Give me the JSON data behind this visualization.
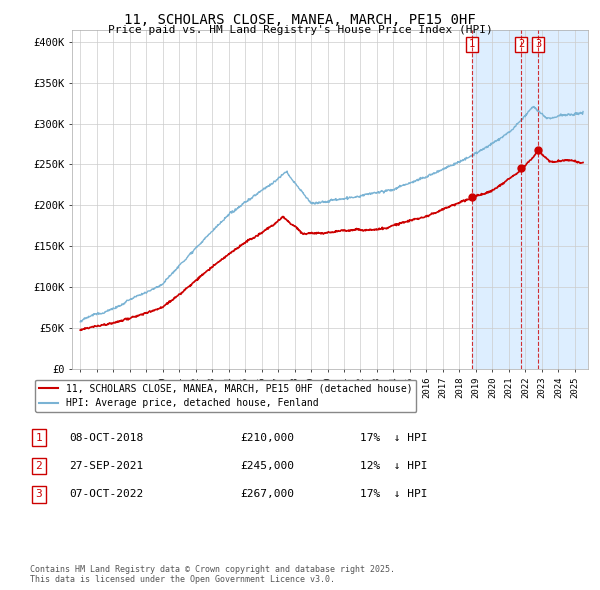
{
  "title": "11, SCHOLARS CLOSE, MANEA, MARCH, PE15 0HF",
  "subtitle": "Price paid vs. HM Land Registry's House Price Index (HPI)",
  "ylabel_ticks": [
    "£0",
    "£50K",
    "£100K",
    "£150K",
    "£200K",
    "£250K",
    "£300K",
    "£350K",
    "£400K"
  ],
  "ytick_values": [
    0,
    50000,
    100000,
    150000,
    200000,
    250000,
    300000,
    350000,
    400000
  ],
  "ylim": [
    0,
    415000
  ],
  "xlim_start": 1994.5,
  "xlim_end": 2025.8,
  "hpi_color": "#7ab3d4",
  "price_color": "#cc0000",
  "dashed_line_color": "#cc0000",
  "background_color": "#ffffff",
  "grid_color": "#cccccc",
  "shade_color": "#ddeeff",
  "legend_label_red": "11, SCHOLARS CLOSE, MANEA, MARCH, PE15 0HF (detached house)",
  "legend_label_blue": "HPI: Average price, detached house, Fenland",
  "sale_events": [
    {
      "num": 1,
      "date": "08-OCT-2018",
      "price": 210000,
      "pct": "17%",
      "year": 2018.77
    },
    {
      "num": 2,
      "date": "27-SEP-2021",
      "price": 245000,
      "pct": "12%",
      "year": 2021.74
    },
    {
      "num": 3,
      "date": "07-OCT-2022",
      "price": 267000,
      "pct": "17%",
      "year": 2022.77
    }
  ],
  "footnote": "Contains HM Land Registry data © Crown copyright and database right 2025.\nThis data is licensed under the Open Government Licence v3.0."
}
